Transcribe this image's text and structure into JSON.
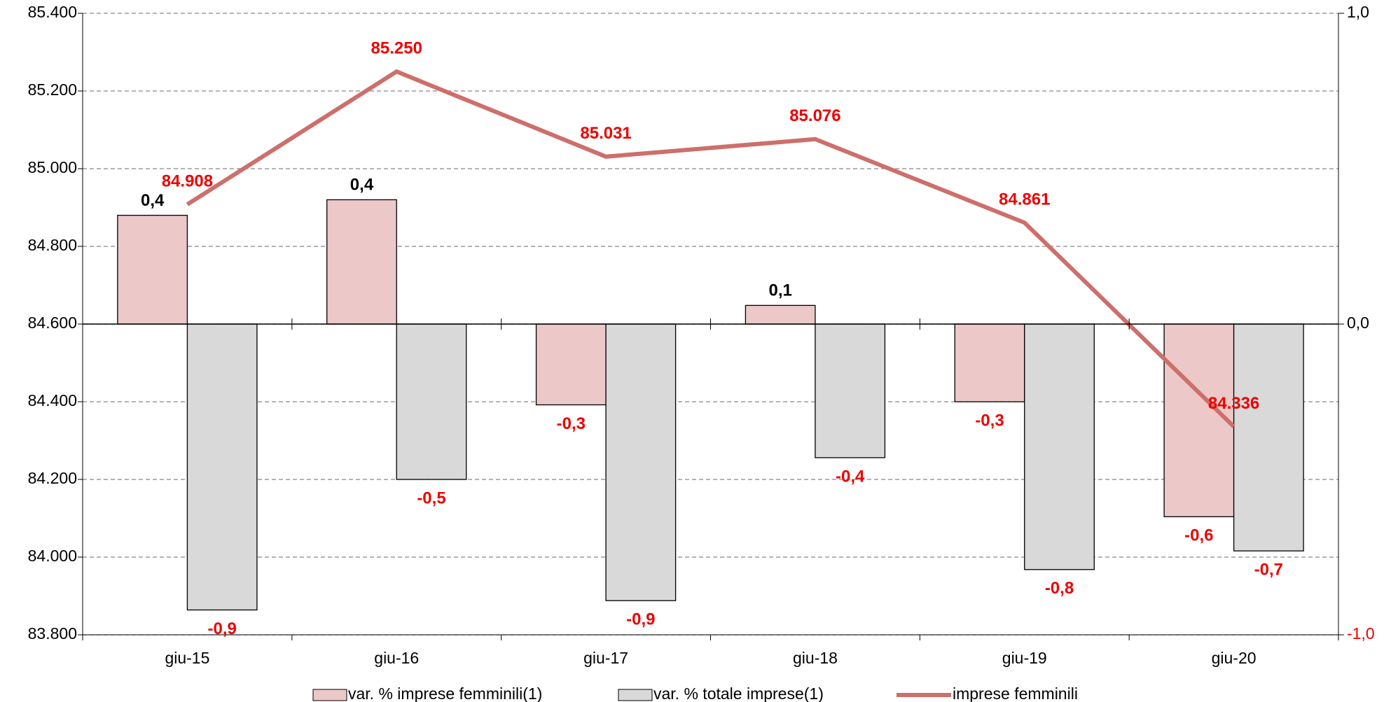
{
  "chart_data": {
    "type": "bar",
    "categories": [
      "giu-15",
      "giu-16",
      "giu-17",
      "giu-18",
      "giu-19",
      "giu-20"
    ],
    "series": [
      {
        "name": "var. % imprese femminili(1)",
        "type": "bar",
        "axis": "y2",
        "color": "#ecc8c8",
        "values": [
          0.35,
          0.4,
          -0.26,
          0.06,
          -0.25,
          -0.62
        ],
        "value_labels": [
          "0,4",
          "0,4",
          "-0,3",
          "0,1",
          "-0,3",
          "-0,6"
        ]
      },
      {
        "name": "var. % totale imprese(1)",
        "type": "bar",
        "axis": "y2",
        "color": "#d9d9d9",
        "values": [
          -0.92,
          -0.5,
          -0.89,
          -0.43,
          -0.79,
          -0.73
        ],
        "value_labels": [
          "-0,9",
          "-0,5",
          "-0,9",
          "-0,4",
          "-0,8",
          "-0,7"
        ]
      },
      {
        "name": "imprese femminili",
        "type": "line",
        "color": "#cd6f6b",
        "values": [
          84908,
          85250,
          85031,
          85076,
          84861,
          84336
        ],
        "value_labels": [
          "84.908",
          "85.250",
          "85.031",
          "85.076",
          "84.861",
          "84.336"
        ]
      }
    ],
    "ylim": [
      83800,
      85400
    ],
    "yticks": [
      {
        "value": 83800,
        "label": "83.800"
      },
      {
        "value": 84000,
        "label": "84.000"
      },
      {
        "value": 84200,
        "label": "84.200"
      },
      {
        "value": 84400,
        "label": "84.400"
      },
      {
        "value": 84600,
        "label": "84.600"
      },
      {
        "value": 84800,
        "label": "84.800"
      },
      {
        "value": 85000,
        "label": "85.000"
      },
      {
        "value": 85200,
        "label": "85.200"
      },
      {
        "value": 85400,
        "label": "85.400"
      }
    ],
    "y2lim": [
      -1,
      1
    ],
    "y2ticks": [
      {
        "value": -1,
        "label": "-1,0"
      },
      {
        "value": 0,
        "label": "0,0"
      },
      {
        "value": 1,
        "label": "1,0"
      }
    ],
    "grid": true,
    "legend": "bottom"
  }
}
